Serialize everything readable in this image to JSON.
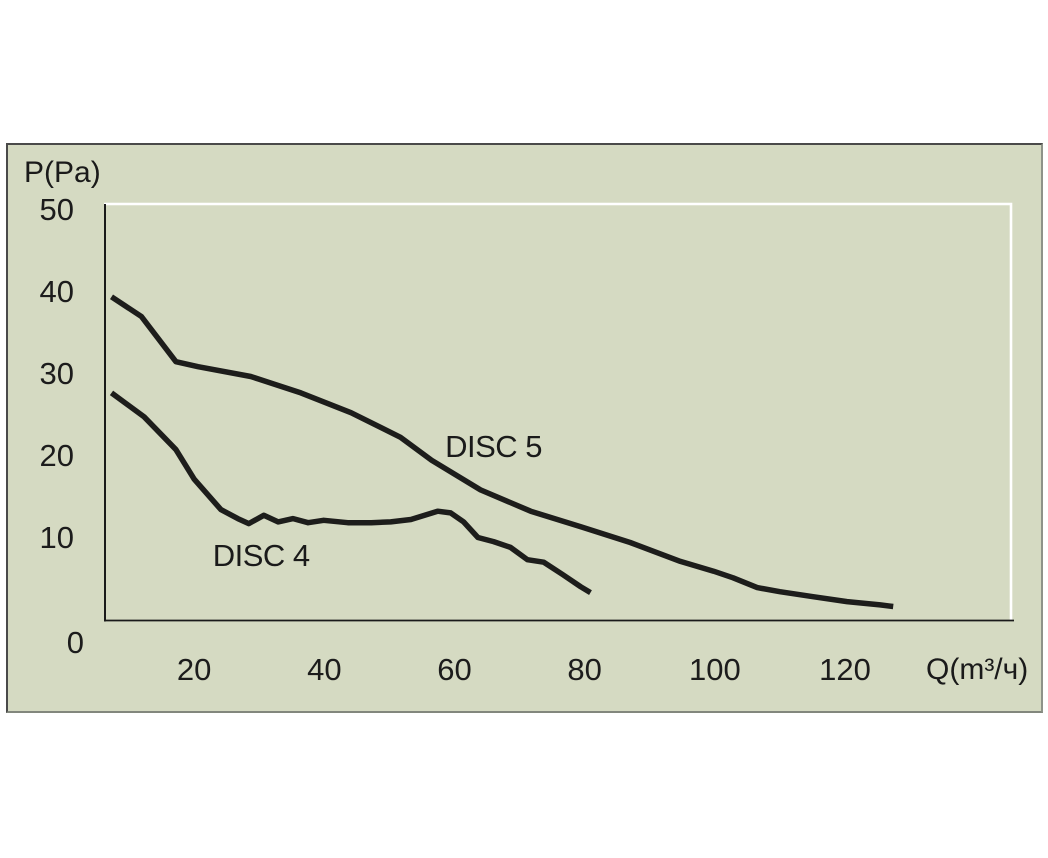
{
  "chart_data": {
    "type": "line",
    "title": "",
    "xlabel": "Q(m³/ч)",
    "ylabel": "P(Pa)",
    "x_ticks": [
      20,
      40,
      60,
      80,
      100,
      120
    ],
    "y_ticks": [
      0,
      10,
      20,
      30,
      40,
      50
    ],
    "xlim": [
      6.3,
      145.5
    ],
    "ylim": [
      0,
      50.7
    ],
    "grid": false,
    "legend_position": "inline-annotations",
    "colors": {
      "curve": "#1d1d1b",
      "panel_background": "#d5dac2",
      "plot_frame_highlight": "#ffffff",
      "axis": "#1a1a1a",
      "text": "#1a1a1a"
    },
    "series": [
      {
        "name": "DISC 4",
        "points": [
          [
            7.3,
            27.7
          ],
          [
            12.3,
            24.8
          ],
          [
            17.2,
            20.8
          ],
          [
            20.0,
            17.2
          ],
          [
            24.1,
            13.5
          ],
          [
            26.7,
            12.4
          ],
          [
            28.4,
            11.8
          ],
          [
            30.7,
            12.8
          ],
          [
            32.9,
            12.0
          ],
          [
            35.2,
            12.4
          ],
          [
            37.5,
            11.9
          ],
          [
            39.9,
            12.2
          ],
          [
            43.6,
            11.9
          ],
          [
            47.2,
            11.9
          ],
          [
            50.2,
            12.0
          ],
          [
            53.3,
            12.3
          ],
          [
            57.4,
            13.3
          ],
          [
            59.4,
            13.1
          ],
          [
            61.4,
            12.0
          ],
          [
            63.6,
            10.1
          ],
          [
            66.0,
            9.6
          ],
          [
            68.6,
            8.9
          ],
          [
            71.2,
            7.4
          ],
          [
            73.7,
            7.1
          ],
          [
            76.6,
            5.6
          ],
          [
            79.4,
            4.1
          ],
          [
            80.9,
            3.4
          ]
        ]
      },
      {
        "name": "DISC 5",
        "points": [
          [
            7.3,
            39.4
          ],
          [
            11.9,
            37.0
          ],
          [
            17.2,
            31.5
          ],
          [
            20.6,
            30.9
          ],
          [
            28.7,
            29.7
          ],
          [
            36.4,
            27.7
          ],
          [
            44.1,
            25.3
          ],
          [
            51.7,
            22.3
          ],
          [
            56.5,
            19.5
          ],
          [
            64.0,
            15.9
          ],
          [
            71.7,
            13.3
          ],
          [
            79.4,
            11.4
          ],
          [
            87.0,
            9.5
          ],
          [
            94.7,
            7.2
          ],
          [
            99.8,
            6.0
          ],
          [
            102.8,
            5.2
          ],
          [
            106.5,
            4.0
          ],
          [
            110.0,
            3.5
          ],
          [
            115.1,
            2.9
          ],
          [
            120.3,
            2.3
          ],
          [
            125.4,
            1.9
          ],
          [
            127.4,
            1.7
          ]
        ]
      }
    ],
    "annotations": [
      {
        "text": "DISC 5",
        "x": 66.0,
        "y": 21.1
      },
      {
        "text": "DISC 4",
        "x": 30.3,
        "y": 7.9
      }
    ]
  }
}
